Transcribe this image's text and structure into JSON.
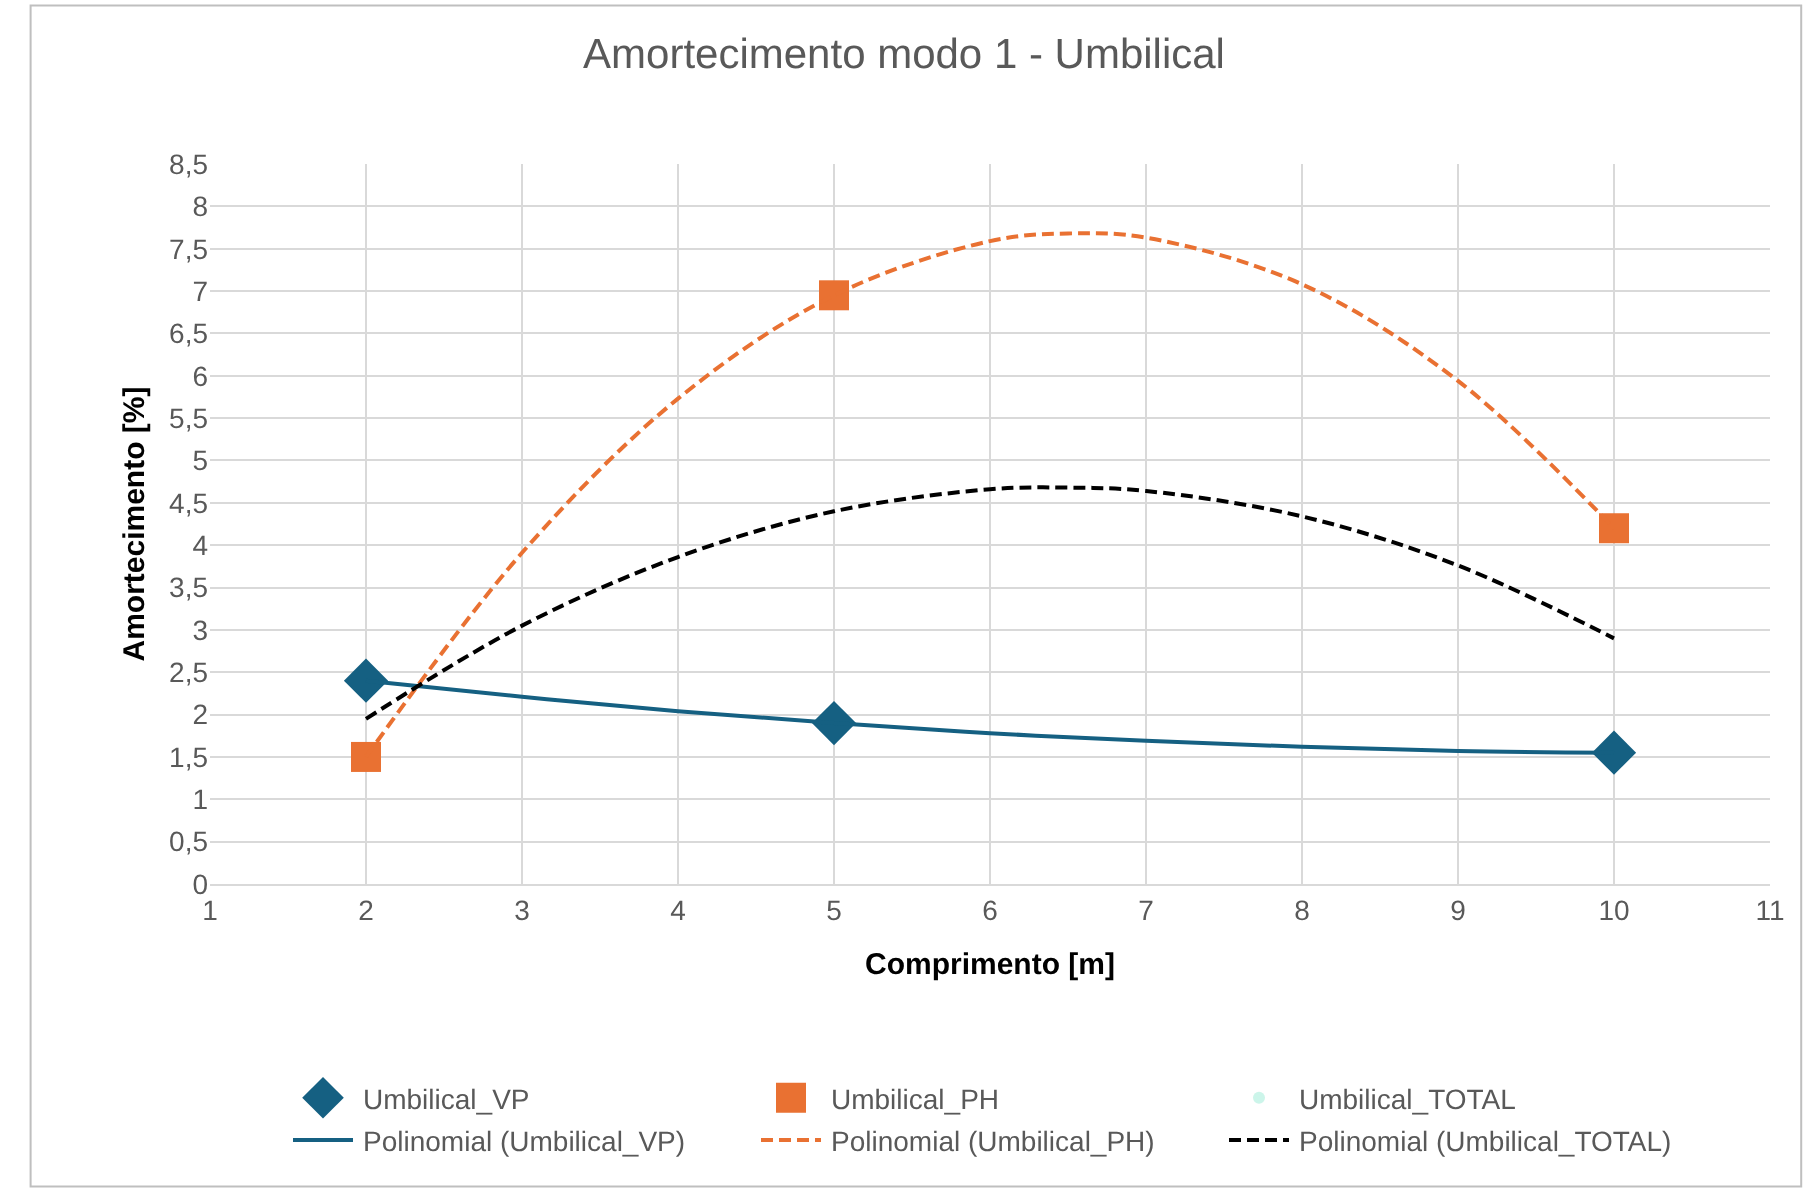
{
  "chart_data": {
    "type": "scatter",
    "title": "Amortecimento modo 1 - Umbilical",
    "xlabel": "Comprimento [m]",
    "ylabel": "Amortecimento [%]",
    "xlim": [
      1,
      11
    ],
    "xticks": [
      1,
      2,
      3,
      4,
      5,
      6,
      7,
      8,
      9,
      10,
      11
    ],
    "ylim": [
      0,
      8.5
    ],
    "yticks": [
      0,
      {
        "value": 0.5,
        "label": "0,5"
      },
      1,
      {
        "value": 1.5,
        "label": "1,5"
      },
      2,
      {
        "value": 2.5,
        "label": "2,5"
      },
      3,
      {
        "value": 3.5,
        "label": "3,5"
      },
      4,
      {
        "value": 4.5,
        "label": "4,5"
      },
      5,
      {
        "value": 5.5,
        "label": "5,5"
      },
      6,
      {
        "value": 6.5,
        "label": "6,5"
      },
      7,
      {
        "value": 7.5,
        "label": "7,5"
      },
      8,
      {
        "value": 8.5,
        "label": "8,5"
      }
    ],
    "grid": true,
    "legend": "bottom",
    "series": [
      {
        "name": "Umbilical_VP",
        "marker": "diamond",
        "color": "#156082",
        "x": [
          2,
          5,
          10
        ],
        "values": [
          2.4,
          1.9,
          1.55
        ]
      },
      {
        "name": "Umbilical_PH",
        "marker": "square",
        "color": "#e97132",
        "x": [
          2,
          5,
          10
        ],
        "values": [
          1.5,
          6.95,
          4.2
        ]
      },
      {
        "name": "Umbilical_TOTAL",
        "marker": "none"
      },
      {
        "name": "Polinomial (Umbilical_VP)",
        "type": "line",
        "line_style": "solid",
        "color": "#156082",
        "x": [
          2,
          3,
          4,
          5,
          6,
          7,
          8,
          9,
          10
        ],
        "values": [
          2.4,
          2.21,
          2.04,
          1.9,
          1.78,
          1.69,
          1.62,
          1.57,
          1.55
        ]
      },
      {
        "name": "Polinomial (Umbilical_PH)",
        "type": "line",
        "line_style": "dashed",
        "color": "#e97132",
        "x": [
          2,
          3,
          4,
          5,
          6,
          6.5,
          7,
          8,
          9,
          10
        ],
        "values": [
          1.5,
          3.91,
          5.73,
          6.95,
          7.59,
          7.68,
          7.63,
          7.08,
          5.94,
          4.2
        ]
      },
      {
        "name": "Polinomial (Umbilical_TOTAL)",
        "type": "line",
        "line_style": "dashed",
        "color": "#000000",
        "x": [
          2,
          3,
          4,
          5,
          6,
          6.5,
          7,
          8,
          9,
          10
        ],
        "values": [
          1.95,
          3.05,
          3.86,
          4.4,
          4.66,
          4.68,
          4.64,
          4.34,
          3.76,
          2.9
        ]
      }
    ]
  }
}
